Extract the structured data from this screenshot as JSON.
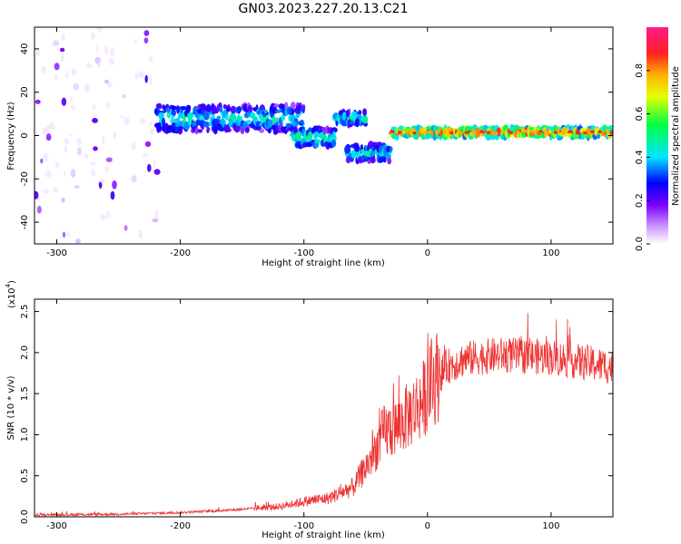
{
  "title": "GN03.2023.227.20.13.C21",
  "chart_data": [
    {
      "type": "heatmap",
      "name": "spectrogram",
      "xlabel": "Height of straight line (km)",
      "ylabel": "Frequency (Hz)",
      "xlim": [
        -318,
        150
      ],
      "ylim": [
        -50,
        50
      ],
      "x_ticks": [
        -300,
        -200,
        -100,
        0,
        100
      ],
      "y_ticks": [
        -40,
        -20,
        0,
        20,
        40
      ],
      "colorbar": {
        "label": "Normalized spectral amplitude",
        "range": [
          0,
          1
        ],
        "ticks": [
          "0.0",
          "0.2",
          "0.4",
          "0.6",
          "0.8"
        ],
        "colors": [
          "#ffffff",
          "#cc99ff",
          "#7a00ff",
          "#0000ff",
          "#00e5ff",
          "#00ff44",
          "#e6ff00",
          "#ffb000",
          "#ff2020",
          "#ff1a8c"
        ]
      },
      "bands": [
        {
          "x_start": -318,
          "x_end": -220,
          "f_center": 0,
          "f_halfwidth": 50,
          "amp": 0.12,
          "note": "noisy broadband"
        },
        {
          "x_start": -220,
          "x_end": -100,
          "f_center": 8,
          "f_halfwidth": 6,
          "amp": 0.45
        },
        {
          "x_start": -110,
          "x_end": -75,
          "f_center": -1,
          "f_halfwidth": 4,
          "amp": 0.5
        },
        {
          "x_start": -75,
          "x_end": -50,
          "f_center": 8,
          "f_halfwidth": 3,
          "amp": 0.5
        },
        {
          "x_start": -65,
          "x_end": -30,
          "f_center": -8,
          "f_halfwidth": 4,
          "amp": 0.45
        },
        {
          "x_start": -30,
          "x_end": 150,
          "f_center": 1.5,
          "f_halfwidth": 2,
          "amp": 0.9
        }
      ]
    },
    {
      "type": "line",
      "name": "snr",
      "xlabel": "Height of straight line (km)",
      "ylabel": "SNR (10 * v/v)",
      "yscale_label": "(x10",
      "yscale_exp": "4",
      "xlim": [
        -318,
        150
      ],
      "ylim": [
        0,
        2.65
      ],
      "x_ticks": [
        -300,
        -200,
        -100,
        0,
        100
      ],
      "y_ticks": [
        "0.0",
        "0.5",
        "1.0",
        "1.5",
        "2.0",
        "2.5"
      ],
      "color": "#ee3333",
      "trend": [
        [
          -318,
          0.02
        ],
        [
          -250,
          0.03
        ],
        [
          -200,
          0.05
        ],
        [
          -160,
          0.08
        ],
        [
          -120,
          0.12
        ],
        [
          -100,
          0.18
        ],
        [
          -80,
          0.22
        ],
        [
          -60,
          0.35
        ],
        [
          -45,
          0.7
        ],
        [
          -35,
          1.0
        ],
        [
          -25,
          1.05
        ],
        [
          -15,
          1.2
        ],
        [
          -5,
          1.35
        ],
        [
          5,
          1.6
        ],
        [
          15,
          1.8
        ],
        [
          30,
          1.9
        ],
        [
          60,
          1.95
        ],
        [
          100,
          1.92
        ],
        [
          130,
          1.85
        ],
        [
          150,
          1.8
        ]
      ]
    }
  ]
}
